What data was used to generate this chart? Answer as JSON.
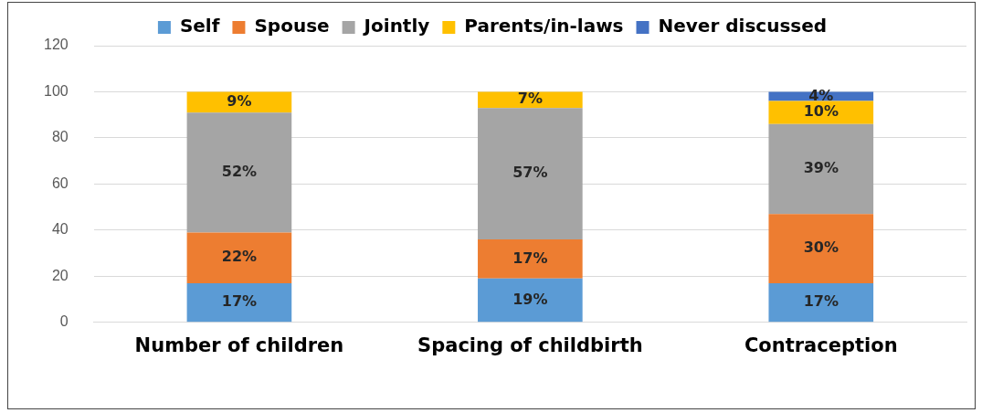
{
  "chart_data": {
    "type": "bar",
    "stacked": true,
    "categories": [
      "Number of children",
      "Spacing of childbirth",
      "Contraception"
    ],
    "series": [
      {
        "name": "Self",
        "color": "#5b9bd5",
        "values": [
          17,
          19,
          17
        ],
        "value_labels": [
          "17%",
          "19%",
          "17%"
        ]
      },
      {
        "name": "Spouse",
        "color": "#ed7d31",
        "values": [
          22,
          17,
          30
        ],
        "value_labels": [
          "22%",
          "17%",
          "30%"
        ]
      },
      {
        "name": "Jointly",
        "color": "#a5a5a5",
        "values": [
          52,
          57,
          39
        ],
        "value_labels": [
          "52%",
          "57%",
          "39%"
        ]
      },
      {
        "name": "Parents/in-laws",
        "color": "#ffc000",
        "values": [
          9,
          7,
          10
        ],
        "value_labels": [
          "9%",
          "7%",
          "10%"
        ]
      },
      {
        "name": "Never discussed",
        "color": "#4472c4",
        "values": [
          null,
          null,
          4
        ],
        "value_labels": [
          null,
          null,
          "4%"
        ]
      }
    ],
    "ylim": [
      0,
      120
    ],
    "yticks": [
      0,
      20,
      40,
      60,
      80,
      100,
      120
    ],
    "grid": "y",
    "legend": "top"
  }
}
